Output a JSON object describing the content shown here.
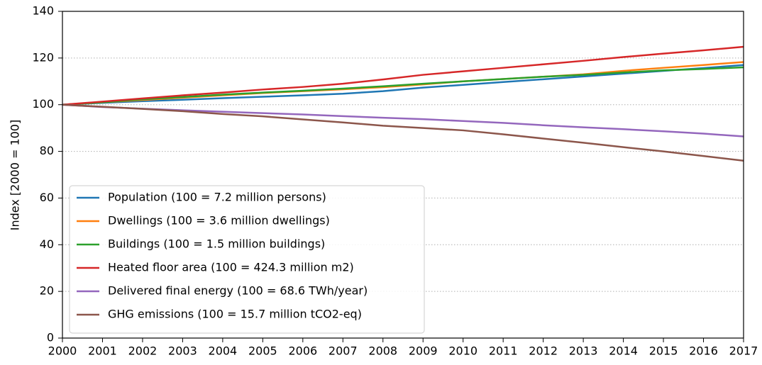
{
  "chart_data": {
    "type": "line",
    "ylabel": "Index [2000 = 100]",
    "x": [
      2000,
      2001,
      2002,
      2003,
      2004,
      2005,
      2006,
      2007,
      2008,
      2009,
      2010,
      2011,
      2012,
      2013,
      2014,
      2015,
      2016,
      2017
    ],
    "series": [
      {
        "name": "Population (100 = 7.2 million persons)",
        "color": "#1f77b4",
        "values": [
          100,
          100.8,
          101.5,
          102.1,
          102.8,
          103.4,
          104,
          104.7,
          105.8,
          107.3,
          108.5,
          109.7,
          110.9,
          112.1,
          113.3,
          114.5,
          115.7,
          117
        ]
      },
      {
        "name": "Dwellings (100 = 3.6 million dwellings)",
        "color": "#ff7f0e",
        "values": [
          100,
          101,
          102,
          103,
          104,
          105,
          105.8,
          106.6,
          107.5,
          108.7,
          110,
          111,
          112,
          113,
          114.5,
          115.8,
          117,
          118.3
        ]
      },
      {
        "name": "Buildings (100 = 1.5 million buildings)",
        "color": "#2ca02c",
        "values": [
          100,
          101,
          102.3,
          103.3,
          104.3,
          105.2,
          106,
          106.9,
          107.9,
          109,
          110,
          111,
          112,
          112.8,
          113.8,
          114.7,
          115.3,
          116
        ]
      },
      {
        "name": "Heated floor area (100 = 424.3 million m2)",
        "color": "#d62728",
        "values": [
          100,
          101.3,
          102.7,
          104,
          105.2,
          106.5,
          107.6,
          109,
          110.8,
          112.8,
          114.3,
          115.8,
          117.3,
          118.8,
          120.4,
          121.9,
          123.3,
          124.8
        ]
      },
      {
        "name": "Delivered final energy (100 = 68.6 TWh/year)",
        "color": "#9467bd",
        "values": [
          100,
          99,
          98.3,
          97.6,
          97,
          96.4,
          95.8,
          95.1,
          94.4,
          93.8,
          93,
          92.2,
          91.2,
          90.3,
          89.5,
          88.6,
          87.6,
          86.4
        ]
      },
      {
        "name": "GHG emissions (100 = 15.7 million tCO2-eq)",
        "color": "#8c564b",
        "values": [
          100,
          99.1,
          98.2,
          97.2,
          96,
          95,
          93.7,
          92.4,
          91,
          90,
          89,
          87.3,
          85.5,
          83.7,
          81.8,
          80,
          78,
          76
        ]
      }
    ],
    "xlim": [
      2000,
      2017
    ],
    "xticks": [
      2000,
      2001,
      2002,
      2003,
      2004,
      2005,
      2006,
      2007,
      2008,
      2009,
      2010,
      2011,
      2012,
      2013,
      2014,
      2015,
      2016,
      2017
    ],
    "ylim": [
      0,
      140
    ],
    "yticks": [
      0,
      20,
      40,
      60,
      80,
      100,
      120,
      140
    ],
    "grid": true,
    "legend": "lower left"
  }
}
